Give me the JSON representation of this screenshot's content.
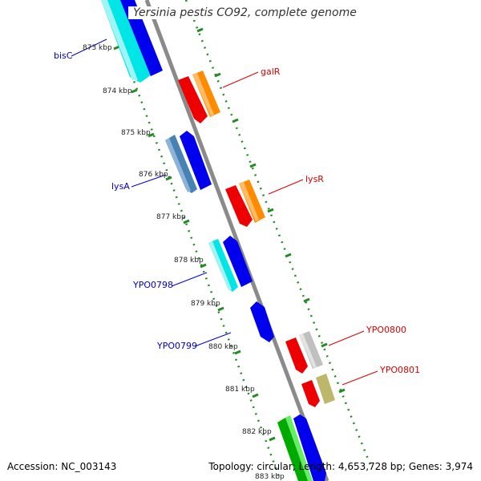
{
  "title": "Yersinia pestis CO92, complete genome",
  "footer": {
    "accession": "Accession: NC_003143",
    "summary": "Topology: circular; Length: 4,653,728 bp; Genes: 3,974"
  },
  "ticks": [
    "873 kbp",
    "874 kbp",
    "875 kbp",
    "876 kbp",
    "877 kbp",
    "878 kbp",
    "879 kbp",
    "880 kbp",
    "881 kbp",
    "882 kbp",
    "883 kbp"
  ],
  "labels_left": [
    "bisC",
    "lysA",
    "YPO0798",
    "YPO0799"
  ],
  "labels_right": [
    "galR",
    "lysR",
    "YPO0800",
    "YPO0801"
  ],
  "colors": {
    "backbone": "#888888",
    "dots": "#228b22",
    "left_label": "#0000cc",
    "right_label": "#dd0000",
    "cyan": "#00e5e5",
    "blue": "#0000ee",
    "steel": "#4682b4",
    "red": "#ee0000",
    "orange": "#ff8c00",
    "silver": "#c0c0c0",
    "khaki": "#bdb76b",
    "green": "#00aa00",
    "lightgreen": "#66ee66"
  }
}
